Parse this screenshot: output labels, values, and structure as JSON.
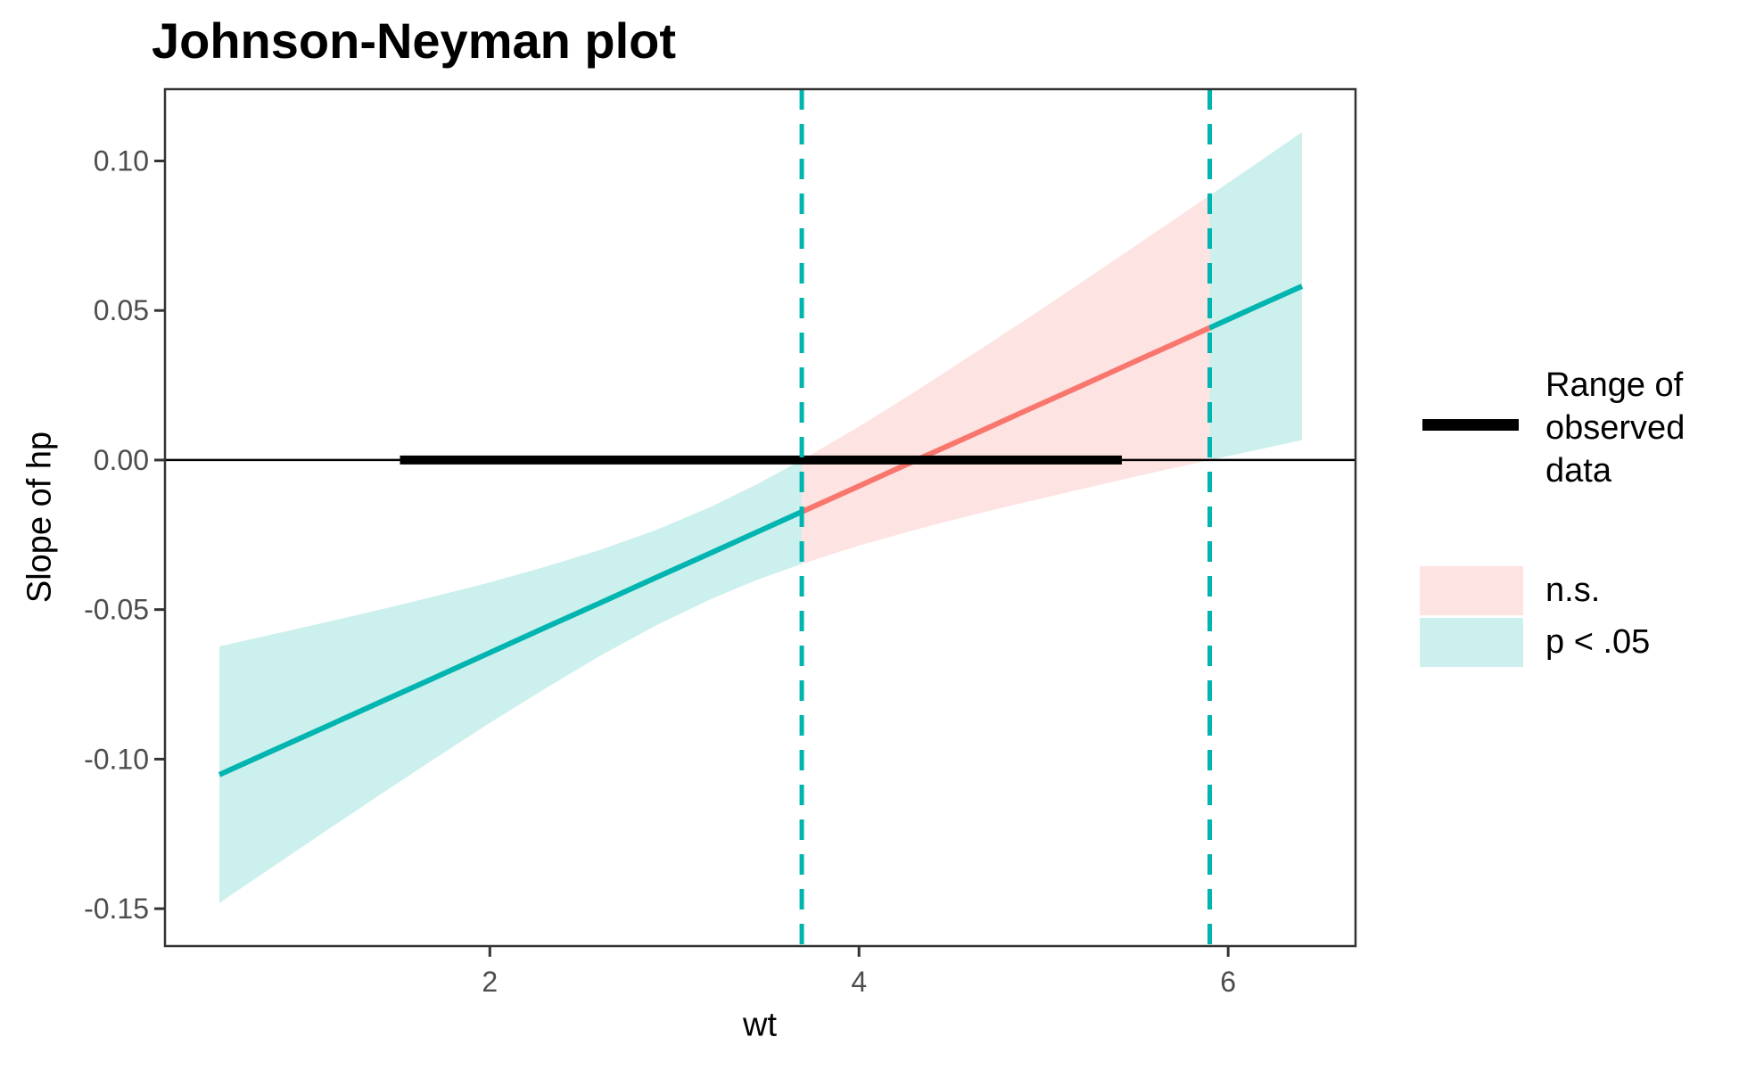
{
  "chart_data": {
    "type": "line",
    "title": "Johnson-Neyman plot",
    "xlabel": "wt",
    "ylabel": "Slope of hp",
    "grid": false,
    "legend_position": "right",
    "x_domain": [
      0.24,
      6.69
    ],
    "y_domain": [
      -0.1625,
      0.124
    ],
    "x_ticks": {
      "values": [
        2,
        4,
        6
      ],
      "labels": [
        "2",
        "4",
        "6"
      ]
    },
    "y_ticks": {
      "values": [
        0.1,
        0.05,
        0.0,
        -0.05,
        -0.1,
        -0.15
      ],
      "labels": [
        "0.10",
        "0.05",
        "0.00",
        "-0.05",
        "-0.10",
        "-0.15"
      ]
    },
    "jn_interval": [
      3.69,
      5.9
    ],
    "observed_range": [
      1.513,
      5.424
    ],
    "zero_line_y": 0,
    "samples": {
      "x": [
        0.535,
        0.8,
        1.1,
        1.4,
        1.7,
        2.0,
        2.3,
        2.6,
        2.9,
        3.2,
        3.45,
        3.69,
        4.0,
        4.3,
        4.6,
        4.9,
        5.2,
        5.5,
        5.9,
        6.15,
        6.4
      ],
      "slope": [
        -0.1052,
        -0.0978,
        -0.0895,
        -0.0811,
        -0.0728,
        -0.0644,
        -0.056,
        -0.0477,
        -0.0393,
        -0.031,
        -0.024,
        -0.0173,
        -0.0087,
        -0.0003,
        0.008,
        0.0164,
        0.0247,
        0.0331,
        0.0442,
        0.0512,
        0.0581
      ],
      "lower": [
        -0.1481,
        -0.137,
        -0.1245,
        -0.1121,
        -0.0999,
        -0.0879,
        -0.0764,
        -0.0654,
        -0.0553,
        -0.0464,
        -0.04,
        -0.0347,
        -0.0286,
        -0.0234,
        -0.0186,
        -0.0141,
        -0.0098,
        -0.0055,
        0.0,
        0.0033,
        0.0067
      ],
      "upper": [
        -0.0623,
        -0.0586,
        -0.0544,
        -0.0501,
        -0.0456,
        -0.0409,
        -0.0357,
        -0.03,
        -0.0234,
        -0.0156,
        -0.008,
        0.0,
        0.0112,
        0.0227,
        0.0347,
        0.0468,
        0.0592,
        0.0717,
        0.0885,
        0.099,
        0.1096
      ]
    },
    "legend": {
      "range_label": "Range of\nobserved\ndata",
      "ns_label": "n.s.",
      "sig_label": "p < .05"
    },
    "colors": {
      "significant_line": "#00B4B0",
      "not_significant_line": "#F8766D",
      "significant_ribbon": "#CCF0ED",
      "not_significant_ribbon": "#FDE3E1",
      "observed_range_bar": "#000000",
      "zero_line": "#000000",
      "panel_border": "#333333",
      "tick_mark": "#333333",
      "axis_text": "#4D4D4D"
    }
  }
}
